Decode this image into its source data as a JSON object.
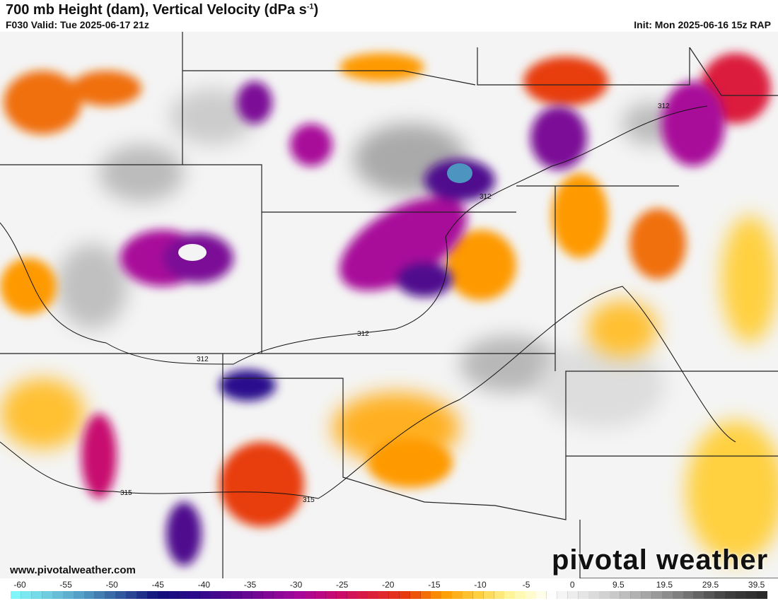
{
  "header": {
    "title": "700 mb Height (dam), Vertical Velocity (dPa s",
    "title_sup": "-1",
    "title_close": ")",
    "valid": "F030 Valid: Tue 2025-06-17 21z",
    "init": "Init: Mon 2025-06-16 15z RAP"
  },
  "contours": [
    {
      "label": "312"
    },
    {
      "label": "312"
    },
    {
      "label": "312"
    },
    {
      "label": "312"
    },
    {
      "label": "315"
    },
    {
      "label": "315"
    }
  ],
  "watermark": {
    "site": "www.pivotalweather.com",
    "brand": "pivotal weather"
  },
  "colorbar": {
    "ticks": [
      "-60",
      "-55",
      "-50",
      "-45",
      "-40",
      "-35",
      "-30",
      "-25",
      "-20",
      "-15",
      "-10",
      "-5",
      "0",
      "9.5",
      "19.5",
      "29.5",
      "39.5"
    ],
    "stops": [
      "#80f6fa",
      "#6ec8dc",
      "#4e94c0",
      "#30559a",
      "#12107a",
      "#2a0a8c",
      "#50088e",
      "#7c0896",
      "#a8089a",
      "#c80a70",
      "#dc1e3c",
      "#e83c0c",
      "#fe9a00",
      "#ffd040",
      "#fff8a0",
      "#ffffff",
      "#e4e4e4",
      "#c4c4c4",
      "#9c9c9c",
      "#707070",
      "#404040",
      "#2a2a2a"
    ]
  }
}
